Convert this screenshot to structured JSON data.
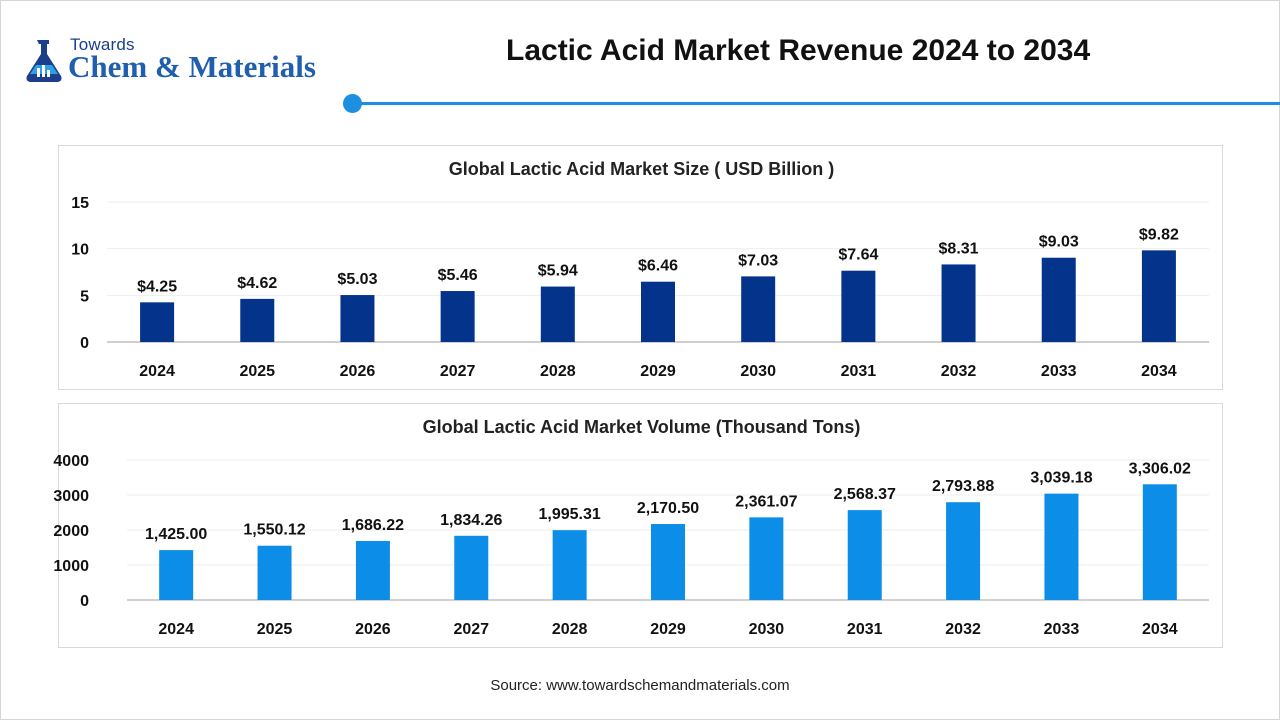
{
  "header": {
    "logo_top": "Towards",
    "logo_main": "Chem & Materials",
    "title": "Lactic Acid Market Revenue 2024 to 2034"
  },
  "colors": {
    "accent": "#1d8fe1",
    "brand": "#1f5fae",
    "size_bar": "#04338c",
    "volume_bar": "#0c8de8"
  },
  "chart_data": [
    {
      "type": "bar",
      "title": "Global Lactic Acid Market Size ( USD Billion )",
      "categories": [
        "2024",
        "2025",
        "2026",
        "2027",
        "2028",
        "2029",
        "2030",
        "2031",
        "2032",
        "2033",
        "2034"
      ],
      "values": [
        4.25,
        4.62,
        5.03,
        5.46,
        5.94,
        6.46,
        7.03,
        7.64,
        8.31,
        9.03,
        9.82
      ],
      "data_labels": [
        "$4.25",
        "$4.62",
        "$5.03",
        "$5.46",
        "$5.94",
        "$6.46",
        "$7.03",
        "$7.64",
        "$8.31",
        "$9.03",
        "$9.82"
      ],
      "yticks": [
        "0",
        "5",
        "10",
        "15"
      ],
      "ylim": [
        0,
        15
      ],
      "grid": true,
      "legend": "none",
      "color": "#04338c"
    },
    {
      "type": "bar",
      "title": "Global Lactic Acid Market Volume (Thousand Tons)",
      "categories": [
        "2024",
        "2025",
        "2026",
        "2027",
        "2028",
        "2029",
        "2030",
        "2031",
        "2032",
        "2033",
        "2034"
      ],
      "values": [
        1425.0,
        1550.12,
        1686.22,
        1834.26,
        1995.31,
        2170.5,
        2361.07,
        2568.37,
        2793.88,
        3039.18,
        3306.02
      ],
      "data_labels": [
        "1,425.00",
        "1,550.12",
        "1,686.22",
        "1,834.26",
        "1,995.31",
        "2,170.50",
        "2,361.07",
        "2,568.37",
        "2,793.88",
        "3,039.18",
        "3,306.02"
      ],
      "yticks": [
        "0",
        "1000",
        "2000",
        "3000",
        "4000"
      ],
      "ylim": [
        0,
        4000
      ],
      "grid": true,
      "legend": "none",
      "color": "#0c8de8"
    }
  ],
  "footer": {
    "source": "Source: www.towardschemandmaterials.com"
  }
}
